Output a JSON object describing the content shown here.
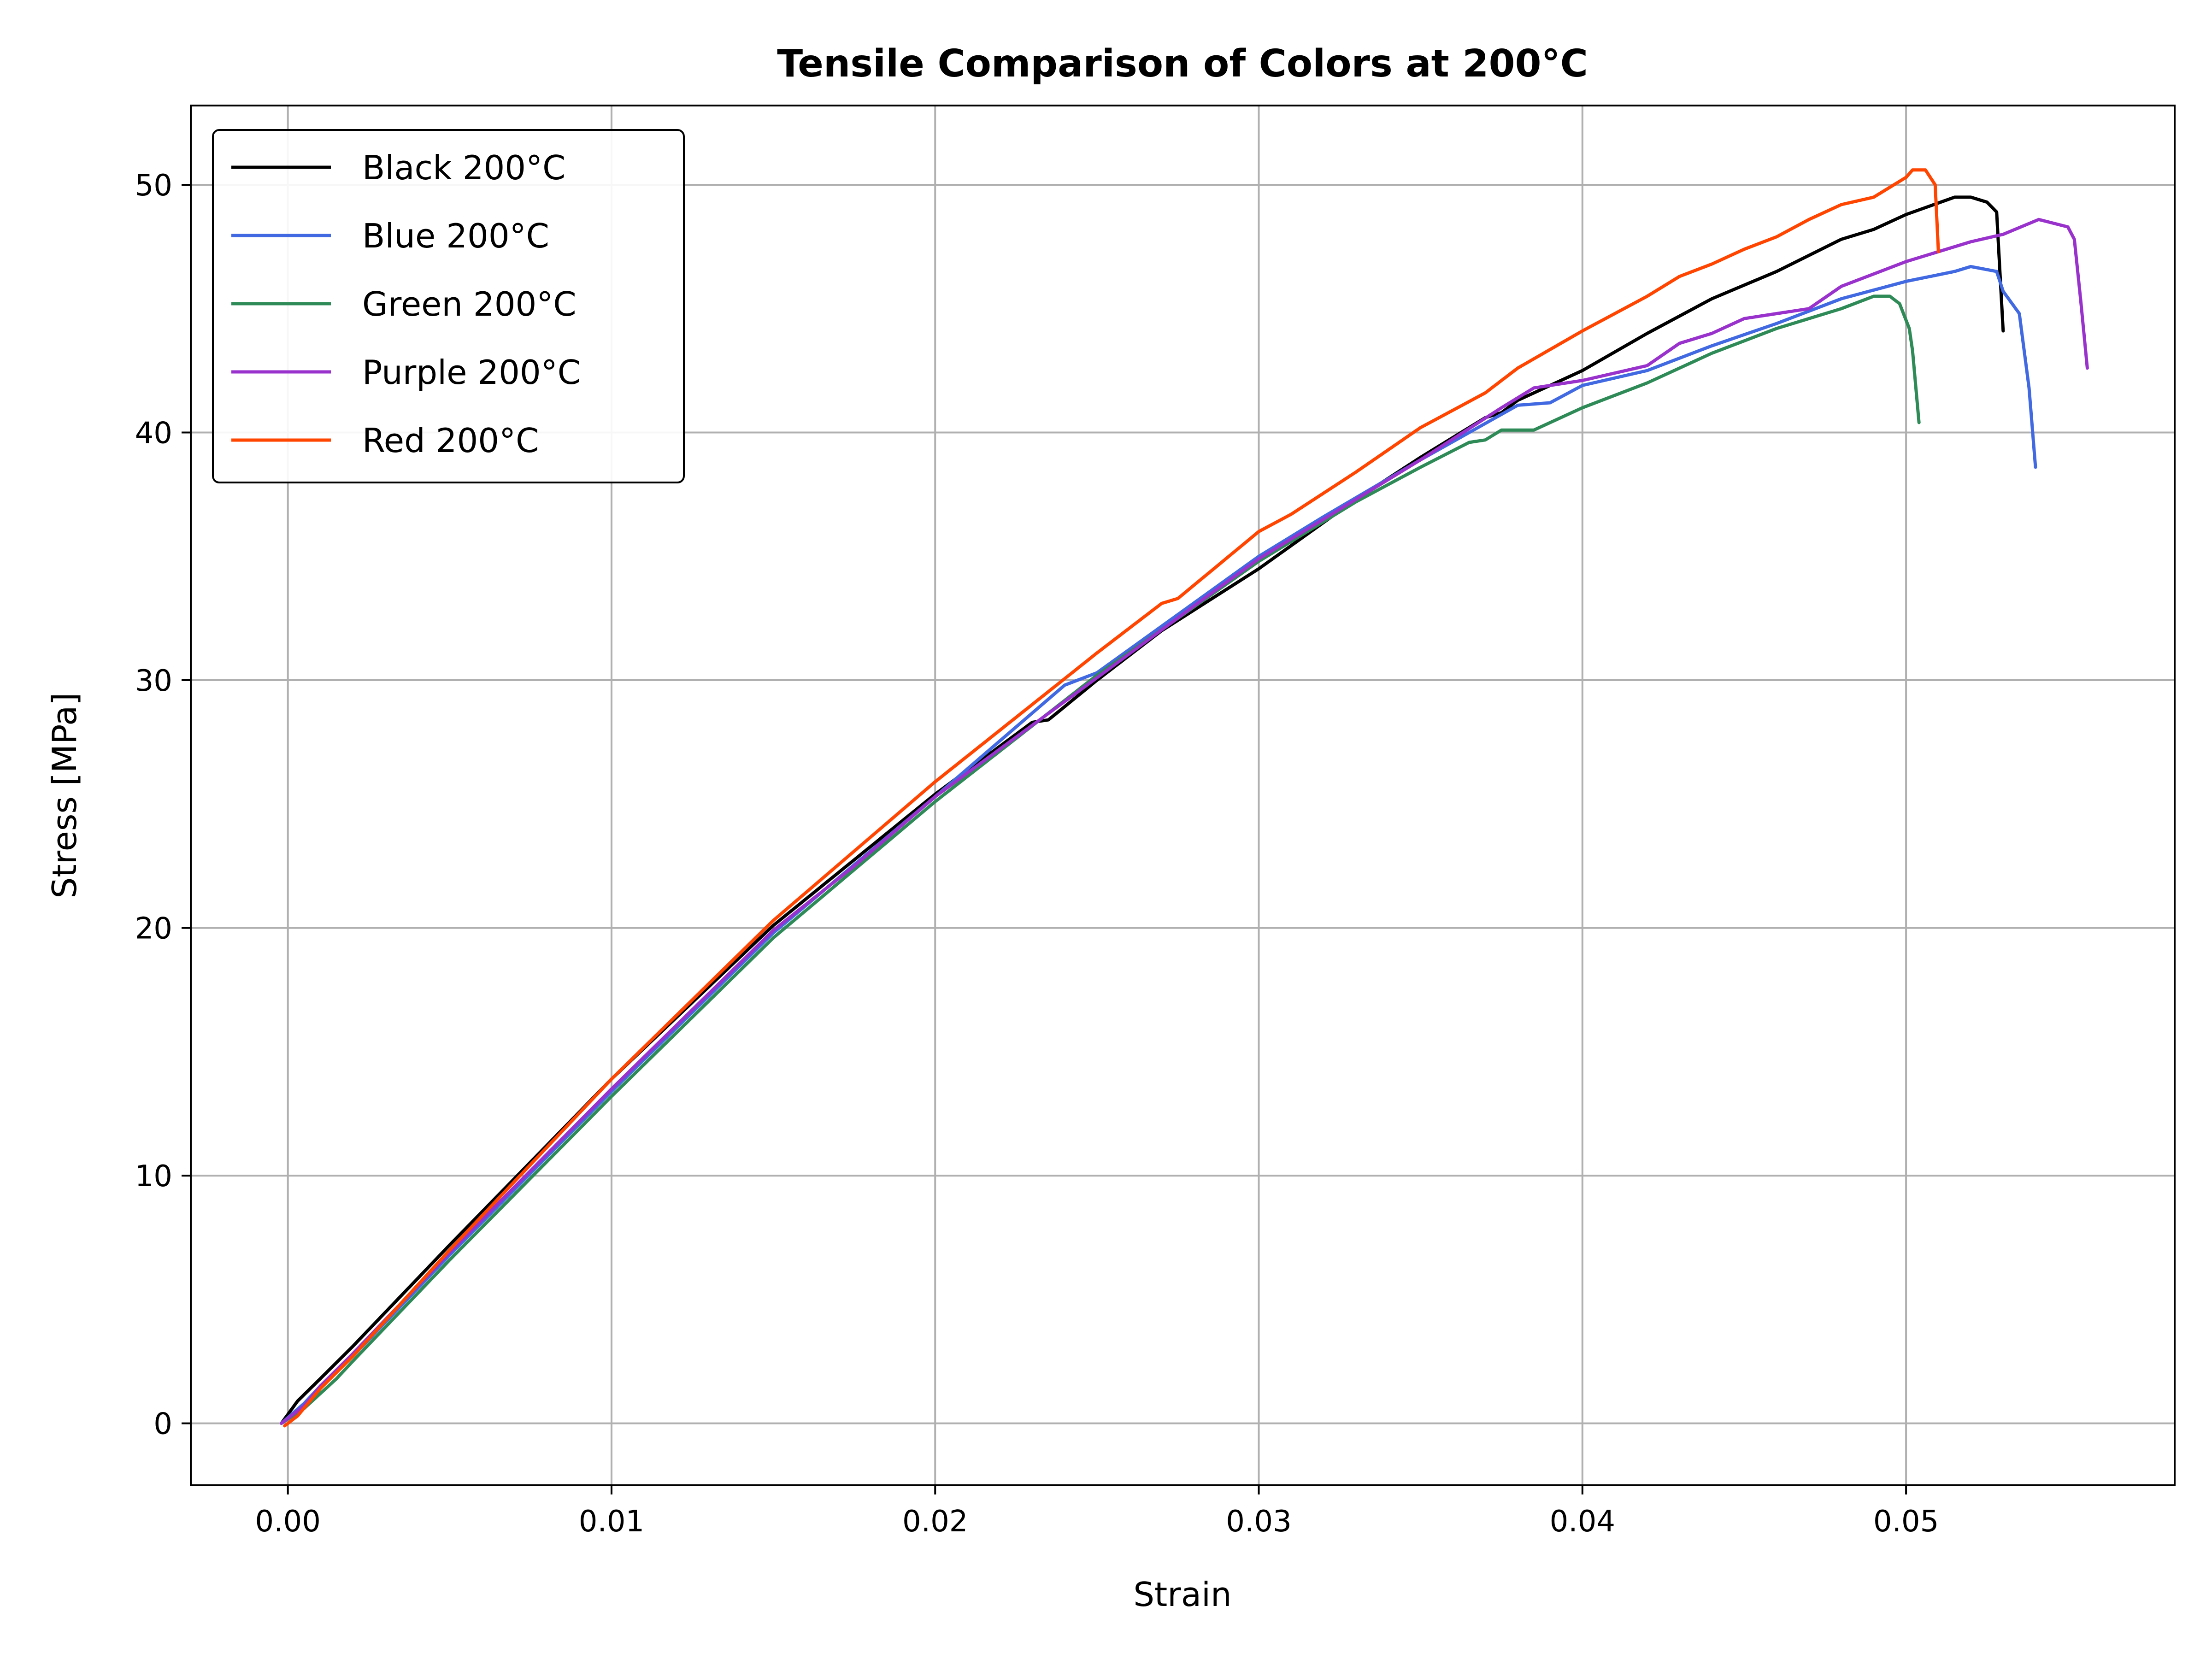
{
  "chart_data": {
    "type": "line",
    "title": "Tensile Comparison of Colors at 200°C",
    "xlabel": "Strain",
    "ylabel": "Stress [MPa]",
    "xlim": [
      -0.003,
      0.0583
    ],
    "ylim": [
      -2.5,
      53.2
    ],
    "xticks": [
      0.0,
      0.01,
      0.02,
      0.03,
      0.04,
      0.05
    ],
    "xtick_labels": [
      "0.00",
      "0.01",
      "0.02",
      "0.03",
      "0.04",
      "0.05"
    ],
    "yticks": [
      0,
      10,
      20,
      30,
      40,
      50
    ],
    "ytick_labels": [
      "0",
      "10",
      "20",
      "30",
      "40",
      "50"
    ],
    "grid": true,
    "legend_position": "top-left",
    "series": [
      {
        "name": "Black 200°C",
        "color": "#000000",
        "points": [
          [
            -0.0002,
            0
          ],
          [
            0.0003,
            0.9
          ],
          [
            0.001,
            1.8
          ],
          [
            0.002,
            3.1
          ],
          [
            0.005,
            7.2
          ],
          [
            0.01,
            13.9
          ],
          [
            0.015,
            20.1
          ],
          [
            0.02,
            25.4
          ],
          [
            0.023,
            28.3
          ],
          [
            0.0235,
            28.4
          ],
          [
            0.025,
            30.0
          ],
          [
            0.027,
            32.0
          ],
          [
            0.03,
            34.5
          ],
          [
            0.033,
            37.3
          ],
          [
            0.035,
            39.0
          ],
          [
            0.037,
            40.6
          ],
          [
            0.0375,
            40.8
          ],
          [
            0.038,
            41.3
          ],
          [
            0.04,
            42.5
          ],
          [
            0.042,
            44.0
          ],
          [
            0.044,
            45.4
          ],
          [
            0.046,
            46.5
          ],
          [
            0.048,
            47.8
          ],
          [
            0.049,
            48.2
          ],
          [
            0.05,
            48.8
          ],
          [
            0.0515,
            49.5
          ],
          [
            0.052,
            49.5
          ],
          [
            0.0525,
            49.3
          ],
          [
            0.0528,
            48.9
          ],
          [
            0.053,
            44.1
          ]
        ]
      },
      {
        "name": "Blue 200°C",
        "color": "#4169e1",
        "points": [
          [
            -0.0002,
            0
          ],
          [
            0.0005,
            0.8
          ],
          [
            0.001,
            1.5
          ],
          [
            0.002,
            2.7
          ],
          [
            0.005,
            6.8
          ],
          [
            0.01,
            13.4
          ],
          [
            0.015,
            19.8
          ],
          [
            0.02,
            25.3
          ],
          [
            0.024,
            29.8
          ],
          [
            0.025,
            30.3
          ],
          [
            0.03,
            35.0
          ],
          [
            0.032,
            36.6
          ],
          [
            0.035,
            38.9
          ],
          [
            0.038,
            41.1
          ],
          [
            0.039,
            41.2
          ],
          [
            0.04,
            41.9
          ],
          [
            0.042,
            42.5
          ],
          [
            0.044,
            43.5
          ],
          [
            0.046,
            44.4
          ],
          [
            0.048,
            45.4
          ],
          [
            0.05,
            46.1
          ],
          [
            0.0515,
            46.5
          ],
          [
            0.052,
            46.7
          ],
          [
            0.0528,
            46.5
          ],
          [
            0.053,
            45.7
          ],
          [
            0.0535,
            44.8
          ],
          [
            0.0538,
            41.8
          ],
          [
            0.054,
            38.6
          ]
        ]
      },
      {
        "name": "Green 200°C",
        "color": "#2e8b57",
        "points": [
          [
            -0.0002,
            0
          ],
          [
            0.0005,
            0.6
          ],
          [
            0.0015,
            1.8
          ],
          [
            0.002,
            2.5
          ],
          [
            0.005,
            6.6
          ],
          [
            0.01,
            13.2
          ],
          [
            0.015,
            19.6
          ],
          [
            0.02,
            25.1
          ],
          [
            0.025,
            30.2
          ],
          [
            0.03,
            34.8
          ],
          [
            0.033,
            37.2
          ],
          [
            0.035,
            38.6
          ],
          [
            0.0365,
            39.6
          ],
          [
            0.037,
            39.7
          ],
          [
            0.0375,
            40.1
          ],
          [
            0.0385,
            40.1
          ],
          [
            0.04,
            41.0
          ],
          [
            0.042,
            42.0
          ],
          [
            0.044,
            43.2
          ],
          [
            0.046,
            44.2
          ],
          [
            0.048,
            45.0
          ],
          [
            0.049,
            45.5
          ],
          [
            0.0495,
            45.5
          ],
          [
            0.0498,
            45.2
          ],
          [
            0.0501,
            44.2
          ],
          [
            0.0502,
            43.3
          ],
          [
            0.0504,
            40.4
          ]
        ]
      },
      {
        "name": "Purple 200°C",
        "color": "#9932cc",
        "points": [
          [
            -0.0002,
            0
          ],
          [
            0.0005,
            0.7
          ],
          [
            0.001,
            1.5
          ],
          [
            0.002,
            2.8
          ],
          [
            0.005,
            6.9
          ],
          [
            0.01,
            13.5
          ],
          [
            0.015,
            19.9
          ],
          [
            0.0175,
            22.5
          ],
          [
            0.02,
            25.3
          ],
          [
            0.025,
            30.1
          ],
          [
            0.028,
            33.0
          ],
          [
            0.03,
            34.9
          ],
          [
            0.035,
            38.9
          ],
          [
            0.0375,
            41.0
          ],
          [
            0.0385,
            41.8
          ],
          [
            0.04,
            42.1
          ],
          [
            0.042,
            42.7
          ],
          [
            0.043,
            43.6
          ],
          [
            0.044,
            44.0
          ],
          [
            0.045,
            44.6
          ],
          [
            0.046,
            44.8
          ],
          [
            0.047,
            45.0
          ],
          [
            0.048,
            45.9
          ],
          [
            0.05,
            46.9
          ],
          [
            0.052,
            47.7
          ],
          [
            0.053,
            48.0
          ],
          [
            0.0541,
            48.6
          ],
          [
            0.0544,
            48.5
          ],
          [
            0.055,
            48.3
          ],
          [
            0.0552,
            47.8
          ],
          [
            0.0554,
            45.3
          ],
          [
            0.0556,
            42.6
          ]
        ]
      },
      {
        "name": "Red 200°C",
        "color": "#ff4500",
        "points": [
          [
            -0.0001,
            -0.1
          ],
          [
            0.0003,
            0.3
          ],
          [
            0.001,
            1.4
          ],
          [
            0.002,
            2.7
          ],
          [
            0.005,
            7.0
          ],
          [
            0.01,
            13.9
          ],
          [
            0.015,
            20.3
          ],
          [
            0.02,
            25.9
          ],
          [
            0.025,
            31.1
          ],
          [
            0.027,
            33.1
          ],
          [
            0.0275,
            33.3
          ],
          [
            0.03,
            36.0
          ],
          [
            0.031,
            36.7
          ],
          [
            0.033,
            38.4
          ],
          [
            0.035,
            40.2
          ],
          [
            0.036,
            40.9
          ],
          [
            0.037,
            41.6
          ],
          [
            0.038,
            42.6
          ],
          [
            0.04,
            44.1
          ],
          [
            0.042,
            45.5
          ],
          [
            0.043,
            46.3
          ],
          [
            0.044,
            46.8
          ],
          [
            0.045,
            47.4
          ],
          [
            0.046,
            47.9
          ],
          [
            0.047,
            48.6
          ],
          [
            0.048,
            49.2
          ],
          [
            0.049,
            49.5
          ],
          [
            0.05,
            50.3
          ],
          [
            0.0502,
            50.6
          ],
          [
            0.0506,
            50.6
          ],
          [
            0.0509,
            50.0
          ],
          [
            0.051,
            47.3
          ]
        ]
      }
    ]
  }
}
